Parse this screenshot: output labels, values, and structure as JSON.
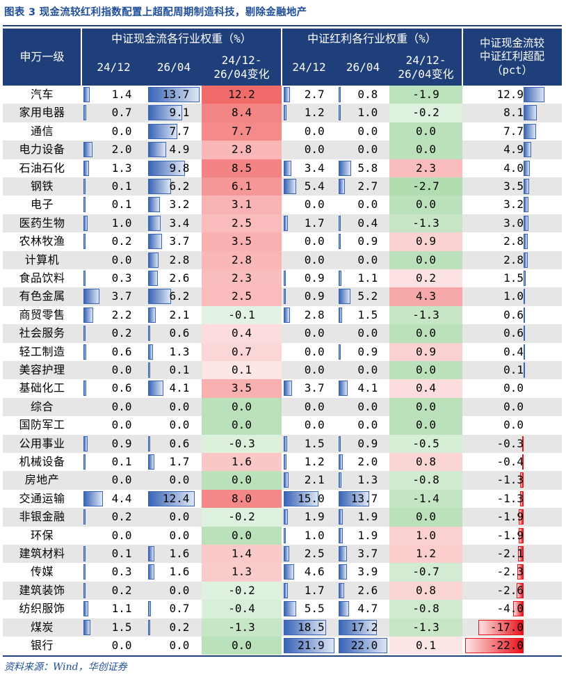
{
  "title": "图表 3   现金流较红利指数配置上超配周期制造科技，剔除金融地产",
  "header": {
    "col0": "申万一级",
    "group1": "中证现金流各行业权重（%）",
    "group2": "中证红利各行业权重（%）",
    "group3": "中证现金流较\n中证红利超配\n（pct）",
    "sub1": "24/12",
    "sub2": "26/04",
    "sub3": "24/12-\n26/04变化",
    "sub4": "24/12",
    "sub5": "26/04",
    "sub6": "24/12-\n26/04变化"
  },
  "rows": [
    {
      "name": "汽车",
      "cf24": "1.4",
      "cf26": "13.7",
      "cfchg": "12.2",
      "dv24": "2.7",
      "dv26": "0.8",
      "dvchg": "-1.9",
      "over": "12.9"
    },
    {
      "name": "家用电器",
      "cf24": "0.7",
      "cf26": "9.1",
      "cfchg": "8.4",
      "dv24": "1.2",
      "dv26": "1.0",
      "dvchg": "-0.2",
      "over": "8.1"
    },
    {
      "name": "通信",
      "cf24": "0.0",
      "cf26": "7.7",
      "cfchg": "7.7",
      "dv24": "0.0",
      "dv26": "0.0",
      "dvchg": "0.0",
      "over": "7.7"
    },
    {
      "name": "电力设备",
      "cf24": "2.0",
      "cf26": "4.9",
      "cfchg": "2.8",
      "dv24": "0.0",
      "dv26": "0.0",
      "dvchg": "0.0",
      "over": "4.9"
    },
    {
      "name": "石油石化",
      "cf24": "1.3",
      "cf26": "9.8",
      "cfchg": "8.5",
      "dv24": "3.4",
      "dv26": "5.8",
      "dvchg": "2.3",
      "over": "4.0"
    },
    {
      "name": "钢铁",
      "cf24": "0.1",
      "cf26": "6.2",
      "cfchg": "6.1",
      "dv24": "5.4",
      "dv26": "2.7",
      "dvchg": "-2.7",
      "over": "3.5"
    },
    {
      "name": "电子",
      "cf24": "0.1",
      "cf26": "3.2",
      "cfchg": "3.1",
      "dv24": "0.0",
      "dv26": "0.0",
      "dvchg": "0.0",
      "over": "3.2"
    },
    {
      "name": "医药生物",
      "cf24": "1.0",
      "cf26": "3.4",
      "cfchg": "2.5",
      "dv24": "1.7",
      "dv26": "0.4",
      "dvchg": "-1.3",
      "over": "3.0"
    },
    {
      "name": "农林牧渔",
      "cf24": "0.2",
      "cf26": "3.7",
      "cfchg": "3.5",
      "dv24": "0.0",
      "dv26": "0.9",
      "dvchg": "0.9",
      "over": "2.8"
    },
    {
      "name": "计算机",
      "cf24": "0.0",
      "cf26": "2.8",
      "cfchg": "2.8",
      "dv24": "0.0",
      "dv26": "0.0",
      "dvchg": "0.0",
      "over": "2.8"
    },
    {
      "name": "食品饮料",
      "cf24": "0.3",
      "cf26": "2.6",
      "cfchg": "2.3",
      "dv24": "0.9",
      "dv26": "1.1",
      "dvchg": "0.2",
      "over": "1.5"
    },
    {
      "name": "有色金属",
      "cf24": "3.7",
      "cf26": "6.2",
      "cfchg": "2.5",
      "dv24": "0.9",
      "dv26": "5.2",
      "dvchg": "4.3",
      "over": "1.0"
    },
    {
      "name": "商贸零售",
      "cf24": "2.2",
      "cf26": "2.1",
      "cfchg": "-0.1",
      "dv24": "2.8",
      "dv26": "1.5",
      "dvchg": "-1.3",
      "over": "0.6"
    },
    {
      "name": "社会服务",
      "cf24": "0.2",
      "cf26": "0.6",
      "cfchg": "0.4",
      "dv24": "0.0",
      "dv26": "0.0",
      "dvchg": "0.0",
      "over": "0.6"
    },
    {
      "name": "轻工制造",
      "cf24": "0.6",
      "cf26": "1.3",
      "cfchg": "0.7",
      "dv24": "0.0",
      "dv26": "0.9",
      "dvchg": "0.9",
      "over": "0.4"
    },
    {
      "name": "美容护理",
      "cf24": "0.0",
      "cf26": "0.1",
      "cfchg": "0.1",
      "dv24": "0.0",
      "dv26": "0.0",
      "dvchg": "0.0",
      "over": "0.1"
    },
    {
      "name": "基础化工",
      "cf24": "0.6",
      "cf26": "4.1",
      "cfchg": "3.5",
      "dv24": "3.7",
      "dv26": "4.1",
      "dvchg": "0.4",
      "over": "0.0"
    },
    {
      "name": "综合",
      "cf24": "0.0",
      "cf26": "0.0",
      "cfchg": "0.0",
      "dv24": "0.0",
      "dv26": "0.0",
      "dvchg": "0.0",
      "over": "0.0"
    },
    {
      "name": "国防军工",
      "cf24": "0.0",
      "cf26": "0.0",
      "cfchg": "0.0",
      "dv24": "0.0",
      "dv26": "0.0",
      "dvchg": "0.0",
      "over": "0.0"
    },
    {
      "name": "公用事业",
      "cf24": "0.9",
      "cf26": "0.6",
      "cfchg": "-0.3",
      "dv24": "1.5",
      "dv26": "0.9",
      "dvchg": "-0.5",
      "over": "-0.3"
    },
    {
      "name": "机械设备",
      "cf24": "0.1",
      "cf26": "1.7",
      "cfchg": "1.6",
      "dv24": "1.2",
      "dv26": "2.0",
      "dvchg": "0.8",
      "over": "-0.4"
    },
    {
      "name": "房地产",
      "cf24": "0.0",
      "cf26": "0.0",
      "cfchg": "0.0",
      "dv24": "2.1",
      "dv26": "1.3",
      "dvchg": "-0.8",
      "over": "-1.3"
    },
    {
      "name": "交通运输",
      "cf24": "4.4",
      "cf26": "12.4",
      "cfchg": "8.0",
      "dv24": "15.0",
      "dv26": "13.7",
      "dvchg": "-1.4",
      "over": "-1.3"
    },
    {
      "name": "非银金融",
      "cf24": "0.2",
      "cf26": "0.0",
      "cfchg": "-0.2",
      "dv24": "1.9",
      "dv26": "1.9",
      "dvchg": "0.0",
      "over": "-1.9"
    },
    {
      "name": "环保",
      "cf24": "0.0",
      "cf26": "0.0",
      "cfchg": "0.0",
      "dv24": "1.0",
      "dv26": "1.9",
      "dvchg": "1.0",
      "over": "-1.9"
    },
    {
      "name": "建筑材料",
      "cf24": "0.1",
      "cf26": "1.6",
      "cfchg": "1.4",
      "dv24": "2.5",
      "dv26": "3.7",
      "dvchg": "1.2",
      "over": "-2.1"
    },
    {
      "name": "传媒",
      "cf24": "0.3",
      "cf26": "1.6",
      "cfchg": "1.3",
      "dv24": "4.6",
      "dv26": "3.9",
      "dvchg": "-0.7",
      "over": "-2.3"
    },
    {
      "name": "建筑装饰",
      "cf24": "0.2",
      "cf26": "0.0",
      "cfchg": "-0.2",
      "dv24": "1.7",
      "dv26": "2.6",
      "dvchg": "0.8",
      "over": "-2.6"
    },
    {
      "name": "纺织服饰",
      "cf24": "1.1",
      "cf26": "0.7",
      "cfchg": "-0.4",
      "dv24": "5.5",
      "dv26": "4.7",
      "dvchg": "-0.8",
      "over": "-4.0"
    },
    {
      "name": "煤炭",
      "cf24": "1.5",
      "cf26": "0.2",
      "cfchg": "-1.3",
      "dv24": "18.5",
      "dv26": "17.2",
      "dvchg": "-1.3",
      "over": "-17.0"
    },
    {
      "name": "银行",
      "cf24": "0.0",
      "cf26": "0.0",
      "cfchg": "0.0",
      "dv24": "21.9",
      "dv26": "22.0",
      "dvchg": "0.1",
      "over": "-22.0"
    }
  ],
  "source": "资料来源：Wind，华创证券",
  "colors": {
    "header_bg": "#1f3f7a",
    "title": "#1f4e9a",
    "bar_blue": "#3a64b5",
    "heat_red": "#f26b6b",
    "heat_green": "#5cb85c",
    "over_red": "#e8101a"
  }
}
